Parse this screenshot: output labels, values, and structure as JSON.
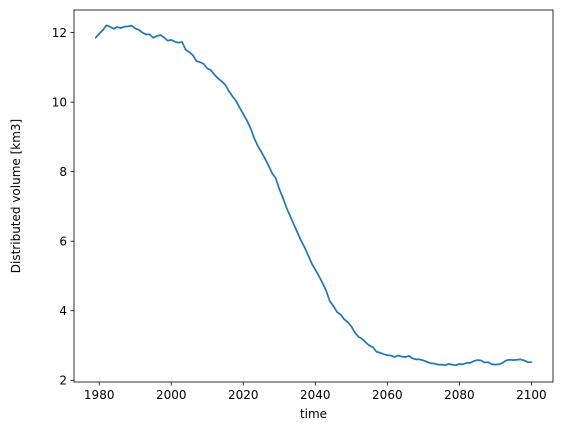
{
  "chart_data": {
    "type": "line",
    "title": "",
    "xlabel": "time",
    "ylabel": "Distributed volume [km3]",
    "xlim": [
      1973,
      2106
    ],
    "ylim": [
      1.95,
      12.65
    ],
    "xticks": [
      1980,
      2000,
      2020,
      2040,
      2060,
      2080,
      2100
    ],
    "yticks": [
      2,
      4,
      6,
      8,
      10,
      12
    ],
    "grid": false,
    "color": "#1f77b4",
    "series": [
      {
        "x": [
          1979,
          1980,
          1981,
          1982,
          1983,
          1984,
          1985,
          1986,
          1987,
          1988,
          1989,
          1990,
          1991,
          1992,
          1993,
          1994,
          1995,
          1996,
          1997,
          1998,
          1999,
          2000,
          2001,
          2002,
          2003,
          2004,
          2005,
          2006,
          2007,
          2008,
          2009,
          2010,
          2011,
          2012,
          2013,
          2014,
          2015,
          2016,
          2017,
          2018,
          2019,
          2020,
          2021,
          2022,
          2023,
          2024,
          2025,
          2026,
          2027,
          2028,
          2029,
          2030,
          2031,
          2032,
          2033,
          2034,
          2035,
          2036,
          2037,
          2038,
          2039,
          2040,
          2041,
          2042,
          2043,
          2044,
          2045,
          2046,
          2047,
          2048,
          2049,
          2050,
          2051,
          2052,
          2053,
          2054,
          2055,
          2056,
          2057,
          2058,
          2059,
          2060,
          2061,
          2062,
          2063,
          2064,
          2065,
          2066,
          2067,
          2068,
          2069,
          2070,
          2071,
          2072,
          2073,
          2074,
          2075,
          2076,
          2077,
          2078,
          2079,
          2080,
          2081,
          2082,
          2083,
          2084,
          2085,
          2086,
          2087,
          2088,
          2089,
          2090,
          2091,
          2092,
          2093,
          2094,
          2095,
          2096,
          2097,
          2098,
          2099,
          2100
        ],
        "y": [
          11.85,
          11.97,
          12.07,
          12.21,
          12.17,
          12.11,
          12.16,
          12.13,
          12.17,
          12.18,
          12.2,
          12.12,
          12.08,
          12.0,
          11.95,
          11.95,
          11.85,
          11.9,
          11.93,
          11.86,
          11.77,
          11.79,
          11.74,
          11.71,
          11.73,
          11.51,
          11.44,
          11.35,
          11.18,
          11.15,
          11.1,
          10.97,
          10.92,
          10.79,
          10.68,
          10.6,
          10.5,
          10.32,
          10.17,
          10.03,
          9.84,
          9.66,
          9.47,
          9.26,
          8.97,
          8.75,
          8.57,
          8.38,
          8.18,
          7.96,
          7.81,
          7.5,
          7.25,
          6.96,
          6.73,
          6.49,
          6.26,
          6.03,
          5.83,
          5.6,
          5.36,
          5.18,
          5.0,
          4.8,
          4.58,
          4.28,
          4.14,
          3.97,
          3.89,
          3.76,
          3.67,
          3.55,
          3.37,
          3.25,
          3.19,
          3.09,
          3.0,
          2.95,
          2.82,
          2.79,
          2.75,
          2.72,
          2.71,
          2.67,
          2.71,
          2.68,
          2.67,
          2.7,
          2.63,
          2.6,
          2.6,
          2.57,
          2.53,
          2.49,
          2.48,
          2.45,
          2.45,
          2.43,
          2.47,
          2.45,
          2.43,
          2.47,
          2.46,
          2.5,
          2.5,
          2.55,
          2.58,
          2.57,
          2.51,
          2.52,
          2.46,
          2.45,
          2.46,
          2.5,
          2.57,
          2.59,
          2.58,
          2.59,
          2.6,
          2.57,
          2.52,
          2.52
        ]
      }
    ]
  }
}
